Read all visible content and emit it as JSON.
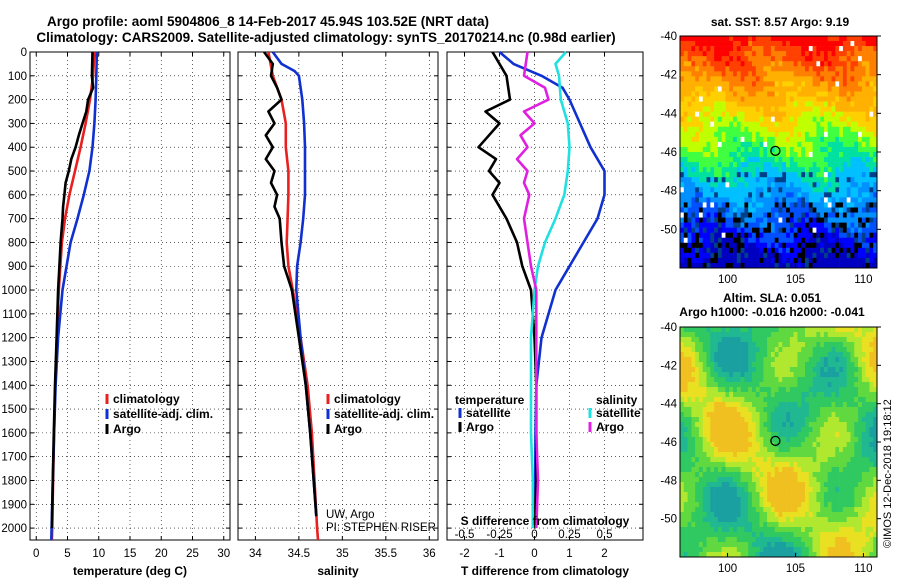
{
  "header": {
    "line1": "Argo profile: aoml 5904806_8 14-Feb-2017 45.94S 103.52E (NRT data)",
    "line2": "Climatology: CARS2009. Satellite-adjusted climatology: synTS_20170214.nc (0.98d earlier)"
  },
  "colors": {
    "climatology": "#e82020",
    "satellite": "#1030d0",
    "argo": "#000000",
    "argo_salinity": "#e020e0",
    "satellite_salinity": "#20e0e0"
  },
  "chart_data": [
    {
      "type": "line",
      "id": "temperature",
      "xlabel": "temperature (deg C)",
      "xlim": [
        -1,
        31
      ],
      "xticks": [
        0,
        5,
        10,
        15,
        20,
        25,
        30
      ],
      "xtick_labels": [
        "0",
        "5",
        "10",
        "15",
        "20",
        "25",
        "30"
      ],
      "ylim": [
        0,
        2050
      ],
      "yticks": [
        0,
        100,
        200,
        300,
        400,
        500,
        600,
        700,
        800,
        900,
        1000,
        1100,
        1200,
        1300,
        1400,
        1500,
        1600,
        1700,
        1800,
        1900,
        2000
      ],
      "ytick_labels": [
        "0",
        "100",
        "200",
        "300",
        "400",
        "500",
        "600",
        "700",
        "800",
        "900",
        "1000",
        "1100",
        "1200",
        "1300",
        "1400",
        "1500",
        "1600",
        "1700",
        "1800",
        "1900",
        "2000"
      ],
      "legend": [
        "climatology",
        "satellite-adj. clim.",
        "Argo"
      ],
      "series": [
        {
          "name": "climatology",
          "color": "#e82020",
          "depth": [
            0,
            100,
            200,
            300,
            400,
            500,
            600,
            700,
            800,
            1000,
            1200,
            1400,
            1600,
            1800,
            2000,
            2050
          ],
          "values": [
            9.3,
            9.1,
            8.6,
            7.9,
            7.1,
            6.2,
            5.3,
            4.6,
            4.1,
            3.6,
            3.3,
            3.05,
            2.85,
            2.7,
            2.55,
            2.5
          ]
        },
        {
          "name": "satellite-adj. clim.",
          "color": "#1030d0",
          "depth": [
            0,
            100,
            200,
            300,
            400,
            500,
            600,
            700,
            800,
            1000,
            1200,
            1400,
            1600,
            1800,
            2000,
            2050
          ],
          "values": [
            9.7,
            9.6,
            9.5,
            9.3,
            9.0,
            8.5,
            7.6,
            6.6,
            5.5,
            4.2,
            3.5,
            3.1,
            2.85,
            2.65,
            2.45,
            2.4
          ]
        },
        {
          "name": "Argo",
          "color": "#000000",
          "depth": [
            0,
            100,
            150,
            200,
            250,
            300,
            350,
            400,
            450,
            500,
            550,
            600,
            650,
            700,
            800,
            900,
            1000,
            1200,
            1400,
            1600,
            1800,
            2000
          ],
          "values": [
            9.0,
            8.9,
            9.1,
            8.3,
            8.0,
            7.4,
            6.8,
            6.3,
            5.6,
            5.2,
            4.7,
            4.5,
            4.3,
            4.2,
            3.9,
            3.7,
            3.5,
            3.25,
            3.0,
            2.8,
            2.65,
            2.5
          ]
        }
      ]
    },
    {
      "type": "line",
      "id": "salinity",
      "xlabel": "salinity",
      "xlim": [
        33.8,
        36.1
      ],
      "xticks": [
        34,
        34.5,
        35,
        35.5,
        36
      ],
      "xtick_labels": [
        "34",
        "34.5",
        "35",
        "35.5",
        "36"
      ],
      "ylim": [
        0,
        2050
      ],
      "legend": [
        "climatology",
        "satellite-adj. clim.",
        "Argo"
      ],
      "annotation": [
        "UW, Argo",
        "PI: STEPHEN RISER"
      ],
      "series": [
        {
          "name": "climatology",
          "color": "#e82020",
          "depth": [
            0,
            100,
            200,
            300,
            400,
            500,
            600,
            700,
            800,
            900,
            1000,
            1200,
            1400,
            1600,
            1800,
            2000,
            2050
          ],
          "values": [
            34.15,
            34.2,
            34.3,
            34.35,
            34.35,
            34.38,
            34.38,
            34.37,
            34.36,
            34.38,
            34.43,
            34.52,
            34.6,
            34.65,
            34.68,
            34.71,
            34.72
          ]
        },
        {
          "name": "satellite-adj. clim.",
          "color": "#1030d0",
          "depth": [
            0,
            50,
            80,
            100,
            150,
            200,
            300,
            400,
            500,
            600,
            700,
            800,
            900,
            1000,
            1200,
            1400,
            1600,
            1800,
            1950
          ],
          "values": [
            34.2,
            34.3,
            34.45,
            34.5,
            34.52,
            34.54,
            34.56,
            34.57,
            34.57,
            34.57,
            34.55,
            34.52,
            34.48,
            34.47,
            34.52,
            34.58,
            34.63,
            34.67,
            34.7
          ]
        },
        {
          "name": "Argo",
          "color": "#000000",
          "depth": [
            0,
            50,
            100,
            150,
            200,
            250,
            300,
            350,
            400,
            450,
            500,
            550,
            600,
            650,
            700,
            800,
            900,
            1000,
            1200,
            1400,
            1600,
            1800,
            1950
          ],
          "values": [
            34.1,
            34.2,
            34.18,
            34.25,
            34.3,
            34.15,
            34.22,
            34.12,
            34.2,
            34.12,
            34.22,
            34.18,
            34.25,
            34.22,
            34.28,
            34.3,
            34.33,
            34.42,
            34.5,
            34.58,
            34.63,
            34.67,
            34.7
          ]
        }
      ]
    },
    {
      "type": "line",
      "id": "difference",
      "xlabel": "T difference from climatology",
      "xlim": [
        -2.5,
        3.1
      ],
      "xticks": [
        -2,
        -1,
        0,
        1,
        2
      ],
      "xtick_labels": [
        "-2",
        "-1",
        "0",
        "1",
        "2"
      ],
      "top_axis_label": "S difference from climatology",
      "top_tick_labels": [
        "-0.5",
        "-0.25",
        "0",
        "0.25",
        "0.5"
      ],
      "top_tick_positions": [
        -2,
        -1,
        0,
        1,
        2
      ],
      "ylim": [
        0,
        2050
      ],
      "legend_titles": [
        "temperature",
        "salinity"
      ],
      "legend": [
        "satellite",
        "Argo"
      ],
      "series": [
        {
          "name": "temperature satellite",
          "color": "#1030d0",
          "depth": [
            0,
            50,
            100,
            150,
            200,
            300,
            400,
            500,
            600,
            700,
            800,
            900,
            1000,
            1200,
            1400,
            1600,
            1800,
            2000
          ],
          "values": [
            -1.0,
            -0.6,
            0.2,
            0.8,
            1.0,
            1.3,
            1.6,
            2.0,
            2.0,
            1.8,
            1.4,
            1.0,
            0.6,
            0.2,
            0.05,
            0.03,
            0.02,
            0.0
          ]
        },
        {
          "name": "temperature Argo",
          "color": "#000000",
          "depth": [
            0,
            100,
            200,
            250,
            300,
            350,
            400,
            450,
            500,
            550,
            600,
            700,
            800,
            900,
            1000,
            1200,
            1400,
            1600,
            1800,
            2000
          ],
          "values": [
            -1.2,
            -0.8,
            -0.7,
            -1.4,
            -1.0,
            -1.3,
            -1.6,
            -1.1,
            -1.3,
            -1.0,
            -1.2,
            -0.8,
            -0.5,
            -0.35,
            -0.1,
            0.0,
            0.05,
            0.05,
            0.05,
            0.0
          ]
        },
        {
          "name": "salinity satellite",
          "color": "#20e0e0",
          "depth": [
            0,
            50,
            100,
            200,
            300,
            400,
            500,
            600,
            700,
            800,
            900,
            1000,
            1200,
            1400,
            1600,
            1800,
            2000
          ],
          "values": [
            0.9,
            0.6,
            0.7,
            0.75,
            0.95,
            1.0,
            0.95,
            0.85,
            0.6,
            0.3,
            0.1,
            0.0,
            -0.1,
            -0.1,
            -0.1,
            -0.05,
            -0.05
          ]
        },
        {
          "name": "salinity Argo",
          "color": "#e020e0",
          "depth": [
            0,
            100,
            150,
            200,
            250,
            300,
            350,
            400,
            450,
            500,
            550,
            600,
            700,
            800,
            900,
            1000,
            1200,
            1400,
            1600,
            1800,
            2000
          ],
          "values": [
            -0.2,
            -0.3,
            0.3,
            0.4,
            -0.3,
            0.0,
            -0.4,
            -0.2,
            -0.5,
            -0.2,
            -0.3,
            -0.15,
            -0.3,
            -0.2,
            -0.1,
            0.05,
            0.05,
            0.05,
            0.05,
            0.1,
            0.05
          ]
        }
      ]
    },
    {
      "type": "heatmap",
      "id": "sst_map",
      "title": "sat. SST: 8.57 Argo: 9.19",
      "xlim": [
        96.5,
        111
      ],
      "ylim": [
        -52,
        -40
      ],
      "xticks": [
        100,
        105,
        110
      ],
      "xtick_labels": [
        "100",
        "105",
        "110"
      ],
      "yticks": [
        -40,
        -42,
        -44,
        -46,
        -48,
        -50
      ],
      "ytick_labels": [
        "-40",
        "-42",
        "-44",
        "-46",
        "-48",
        "-50"
      ],
      "marker": {
        "lon": 103.52,
        "lat": -45.94
      }
    },
    {
      "type": "heatmap",
      "id": "sla_map",
      "title_line1": "Altim. SLA: 0.051",
      "title_line2": "Argo h1000: -0.016 h2000: -0.041",
      "xlim": [
        96.5,
        111
      ],
      "ylim": [
        -52,
        -40
      ],
      "xticks": [
        100,
        105,
        110
      ],
      "xtick_labels": [
        "100",
        "105",
        "110"
      ],
      "yticks": [
        -40,
        -42,
        -44,
        -46,
        -48,
        -50
      ],
      "ytick_labels": [
        "-40",
        "-42",
        "-44",
        "-46",
        "-48",
        "-50"
      ],
      "marker": {
        "lon": 103.52,
        "lat": -45.94
      },
      "credit": "©IMOS 12-Dec-2018 19:18:12"
    }
  ]
}
